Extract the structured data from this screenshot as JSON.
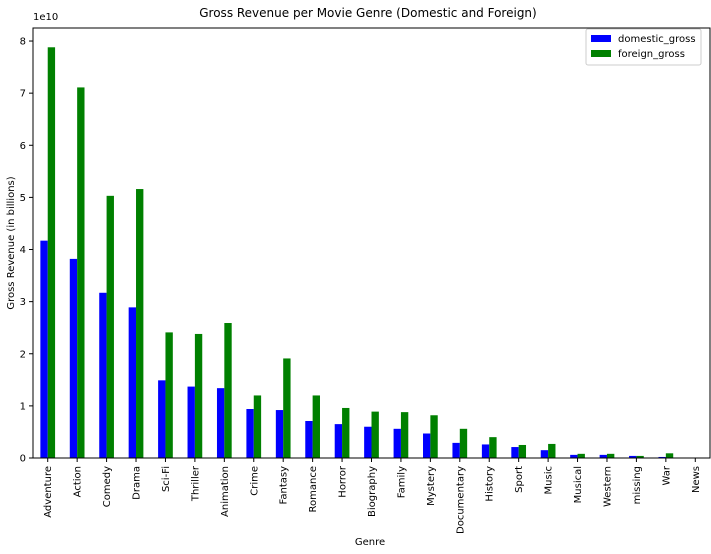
{
  "chart_data": {
    "type": "bar",
    "title": "Gross Revenue per Movie Genre (Domestic and Foreign)",
    "xlabel": "Genre",
    "ylabel": "Gross Revenue (in billions)",
    "y_offset_label": "1e10",
    "ylim": [
      0,
      8.25
    ],
    "yticks": [
      "0",
      "1",
      "2",
      "3",
      "4",
      "5",
      "6",
      "7",
      "8"
    ],
    "grid": false,
    "legend_position": "top-right",
    "categories": [
      "Adventure",
      "Action",
      "Comedy",
      "Drama",
      "Sci-Fi",
      "Thriller",
      "Animation",
      "Crime",
      "Fantasy",
      "Romance",
      "Horror",
      "Biography",
      "Family",
      "Mystery",
      "Documentary",
      "History",
      "Sport",
      "Music",
      "Musical",
      "Western",
      "missing",
      "War",
      "News"
    ],
    "series": [
      {
        "name": "domestic_gross",
        "color": "#0000ff",
        "values": [
          4.17,
          3.82,
          3.17,
          2.89,
          1.49,
          1.37,
          1.34,
          0.94,
          0.92,
          0.71,
          0.65,
          0.6,
          0.56,
          0.47,
          0.29,
          0.26,
          0.21,
          0.15,
          0.06,
          0.06,
          0.04,
          0.02,
          0.0
        ]
      },
      {
        "name": "foreign_gross",
        "color": "#008000",
        "values": [
          7.88,
          7.11,
          5.03,
          5.16,
          2.41,
          2.38,
          2.59,
          1.2,
          1.91,
          1.2,
          0.96,
          0.89,
          0.88,
          0.82,
          0.56,
          0.4,
          0.25,
          0.27,
          0.08,
          0.08,
          0.04,
          0.09,
          0.0
        ]
      }
    ]
  }
}
